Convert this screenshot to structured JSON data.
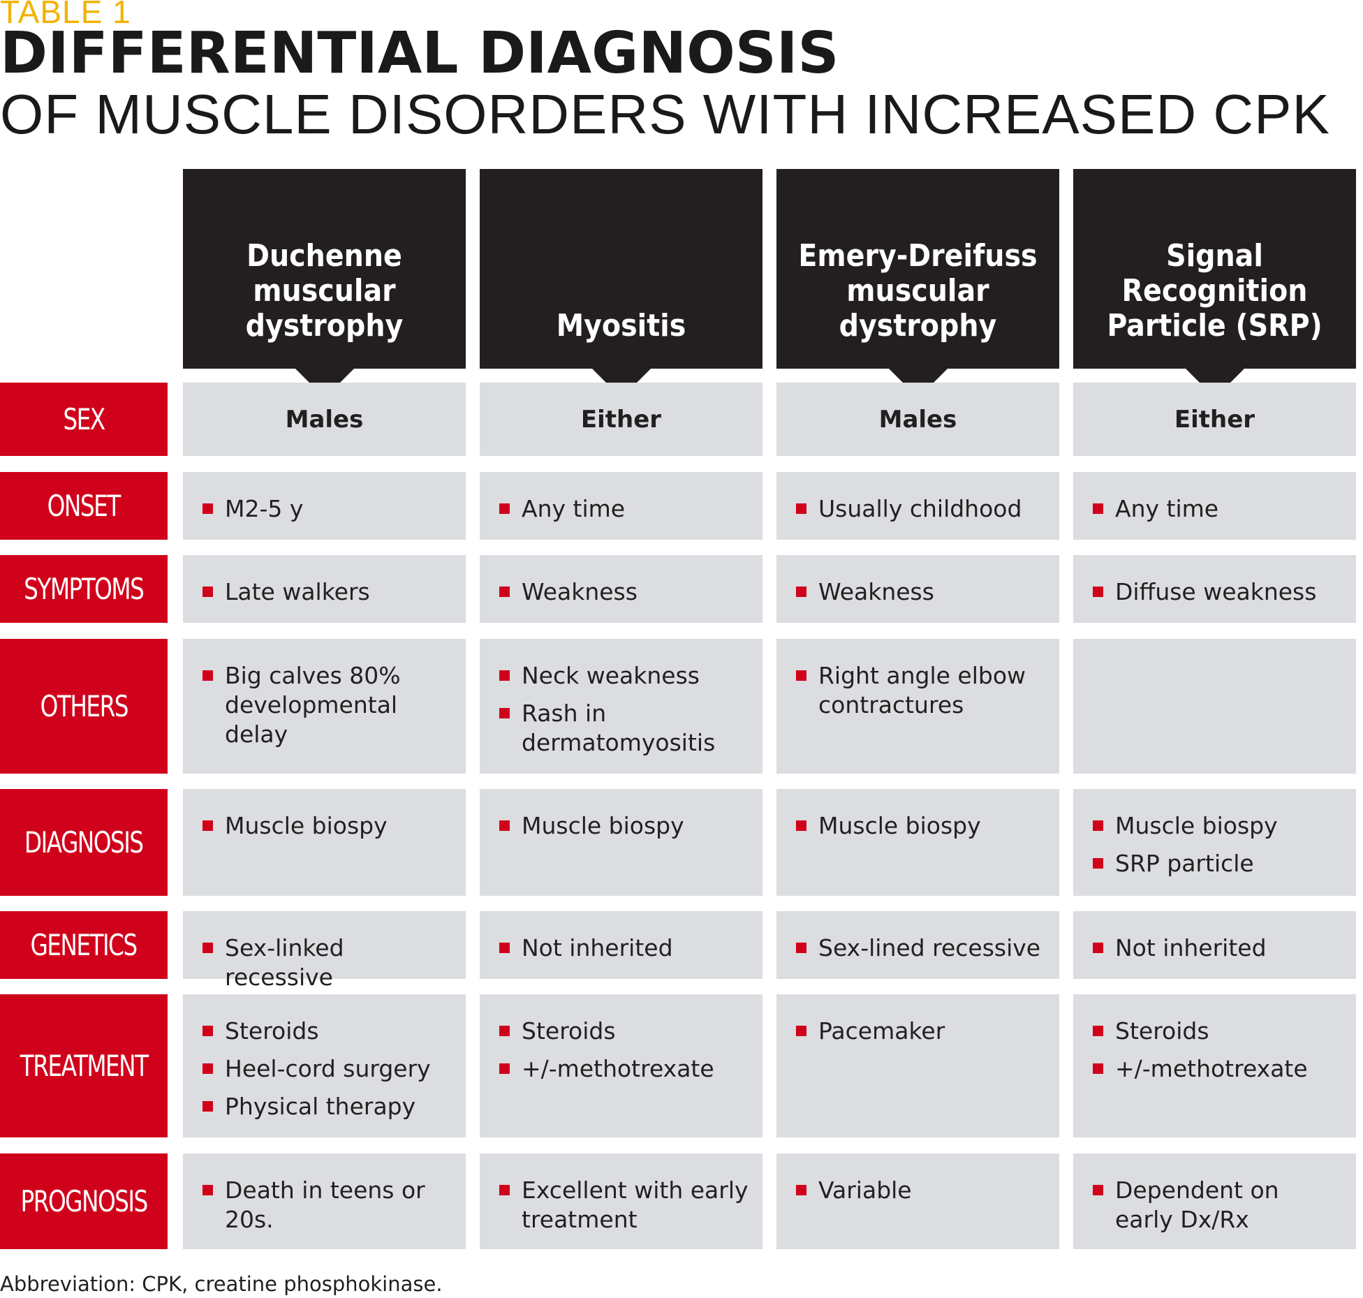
{
  "header": {
    "table_label": "TABLE 1",
    "title": "DIFFERENTIAL DIAGNOSIS",
    "subtitle": "OF MUSCLE DISORDERS WITH INCREASED CPK"
  },
  "colors": {
    "red": "#d0021b",
    "black": "#231f20",
    "cell_gray": "#dcdde0",
    "yellow": "#f2b300"
  },
  "columns": [
    "Duchenne\nmuscular\ndystrophy",
    "Myositis",
    "Emery-Dreifuss\nmuscular\ndystrophy",
    "Signal\nRecognition\nParticle (SRP)"
  ],
  "rows": [
    {
      "label": "SEX",
      "cells": [
        [
          "Males"
        ],
        [
          "Either"
        ],
        [
          "Males"
        ],
        [
          "Either"
        ]
      ]
    },
    {
      "label": "ONSET",
      "cells": [
        [
          "M2-5 y"
        ],
        [
          "Any time"
        ],
        [
          "Usually childhood"
        ],
        [
          "Any time"
        ]
      ]
    },
    {
      "label": "SYMPTOMS",
      "cells": [
        [
          "Late walkers"
        ],
        [
          "Weakness"
        ],
        [
          "Weakness"
        ],
        [
          "Diffuse weakness"
        ]
      ]
    },
    {
      "label": "OTHERS",
      "cells": [
        [
          "Big calves 80% developmental delay"
        ],
        [
          "Neck weakness",
          "Rash in dermatomyositis"
        ],
        [
          "Right angle elbow contractures"
        ],
        []
      ]
    },
    {
      "label": "DIAGNOSIS",
      "cells": [
        [
          "Muscle biospy"
        ],
        [
          "Muscle biospy"
        ],
        [
          "Muscle biospy"
        ],
        [
          "Muscle biospy",
          "SRP particle"
        ]
      ]
    },
    {
      "label": "GENETICS",
      "cells": [
        [
          "Sex-linked recessive"
        ],
        [
          "Not inherited"
        ],
        [
          "Sex-lined recessive"
        ],
        [
          "Not inherited"
        ]
      ]
    },
    {
      "label": "TREATMENT",
      "cells": [
        [
          "Steroids",
          "Heel-cord surgery",
          "Physical therapy"
        ],
        [
          "Steroids",
          "+/-methotrexate"
        ],
        [
          "Pacemaker"
        ],
        [
          "Steroids",
          "+/-methotrexate"
        ]
      ]
    },
    {
      "label": "PROGNOSIS",
      "cells": [
        [
          "Death in teens or 20s."
        ],
        [
          "Excellent with early treatment"
        ],
        [
          "Variable"
        ],
        [
          "Dependent on early Dx/Rx"
        ]
      ]
    }
  ],
  "footnote": "Abbreviation: CPK, creatine phosphokinase."
}
